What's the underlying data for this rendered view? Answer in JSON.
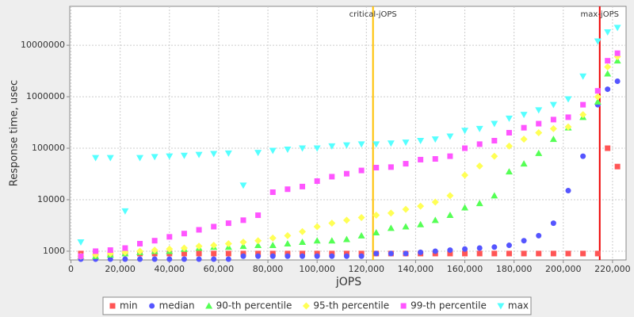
{
  "chart_data": {
    "type": "scatter",
    "x_label": "jOPS",
    "y_label": "Response time, usec",
    "log_y": true,
    "grid": true,
    "legend": "bottom",
    "xlim": [
      -500,
      225500
    ],
    "ylim": [
      676,
      57000000
    ],
    "xticks": [
      0,
      {
        "value": 20000,
        "label": "20,000"
      },
      {
        "value": 40000,
        "label": "40,000"
      },
      {
        "value": 60000,
        "label": "60,000"
      },
      {
        "value": 80000,
        "label": "80,000"
      },
      {
        "value": 100000,
        "label": "100,000"
      },
      {
        "value": 120000,
        "label": "120,000"
      },
      {
        "value": 140000,
        "label": "140,000"
      },
      {
        "value": 160000,
        "label": "160,000"
      },
      {
        "value": 180000,
        "label": "180,000"
      },
      {
        "value": 200000,
        "label": "200,000"
      },
      {
        "value": 220000,
        "label": "220,000"
      }
    ],
    "yticks": [
      1000,
      10000,
      100000,
      1000000,
      10000000
    ],
    "markers": [
      {
        "label": "critical-jOPS",
        "value": 122700,
        "color": "#ffc000"
      },
      {
        "label": "max-jOPS",
        "value": 214800,
        "color": "#ee0000"
      }
    ],
    "x": [
      4000,
      10000,
      16000,
      22000,
      28000,
      34000,
      40000,
      46000,
      52000,
      58000,
      64000,
      70000,
      76000,
      82000,
      88000,
      94000,
      100000,
      106000,
      112000,
      118000,
      124000,
      130000,
      136000,
      142000,
      148000,
      154000,
      160000,
      166000,
      172000,
      178000,
      184000,
      190000,
      196000,
      202000,
      208000,
      214000,
      218000,
      222000
    ],
    "series": [
      {
        "name": "min",
        "color": "#ff5555",
        "marker": "square",
        "values": [
          900,
          900,
          900,
          900,
          900,
          900,
          900,
          900,
          900,
          900,
          900,
          900,
          900,
          900,
          900,
          900,
          900,
          900,
          900,
          900,
          900,
          900,
          900,
          900,
          900,
          900,
          900,
          900,
          900,
          900,
          900,
          900,
          900,
          900,
          900,
          900,
          100000,
          44000
        ]
      },
      {
        "name": "median",
        "color": "#5555ff",
        "marker": "circle",
        "values": [
          700,
          700,
          700,
          700,
          700,
          700,
          700,
          700,
          700,
          700,
          700,
          800,
          800,
          800,
          800,
          800,
          800,
          800,
          800,
          800,
          900,
          900,
          900,
          950,
          1000,
          1050,
          1100,
          1150,
          1200,
          1300,
          1600,
          2000,
          3500,
          15000,
          70000,
          700000,
          1400000,
          2000000
        ]
      },
      {
        "name": "90-th percentile",
        "color": "#55ff55",
        "marker": "triangle-up",
        "values": [
          800,
          800,
          850,
          900,
          950,
          1000,
          1000,
          1100,
          1150,
          1200,
          1200,
          1250,
          1300,
          1300,
          1400,
          1500,
          1600,
          1600,
          1700,
          2000,
          2300,
          2800,
          3000,
          3300,
          4000,
          5000,
          7000,
          8500,
          12000,
          35000,
          50000,
          80000,
          150000,
          250000,
          400000,
          800000,
          2800000,
          5000000
        ]
      },
      {
        "name": "95-th percentile",
        "color": "#ffff55",
        "marker": "diamond",
        "values": [
          800,
          850,
          900,
          950,
          1000,
          1050,
          1100,
          1150,
          1250,
          1300,
          1400,
          1500,
          1600,
          1800,
          2000,
          2400,
          3000,
          3500,
          4000,
          4500,
          5000,
          5500,
          6500,
          7500,
          9000,
          12000,
          30000,
          45000,
          70000,
          110000,
          150000,
          200000,
          240000,
          260000,
          450000,
          1000000,
          3800000,
          6000000
        ]
      },
      {
        "name": "99-th percentile",
        "color": "#ff55ff",
        "marker": "square",
        "values": [
          800,
          1000,
          1050,
          1150,
          1400,
          1600,
          1900,
          2200,
          2600,
          3000,
          3500,
          4000,
          5000,
          14000,
          16000,
          18000,
          23000,
          28000,
          32000,
          37000,
          42000,
          43000,
          50000,
          60000,
          62000,
          70000,
          100000,
          120000,
          140000,
          200000,
          250000,
          300000,
          360000,
          400000,
          700000,
          1300000,
          5000000,
          7000000
        ]
      },
      {
        "name": "max",
        "color": "#55ffff",
        "marker": "triangle-down",
        "values": [
          1500,
          65000,
          65000,
          6000,
          65000,
          68000,
          70000,
          72000,
          75000,
          78000,
          80000,
          19000,
          82000,
          90000,
          95000,
          100000,
          100000,
          110000,
          115000,
          120000,
          120000,
          125000,
          130000,
          140000,
          150000,
          170000,
          220000,
          240000,
          300000,
          380000,
          450000,
          550000,
          700000,
          900000,
          2500000,
          12000000,
          18000000,
          22000000
        ]
      }
    ]
  }
}
